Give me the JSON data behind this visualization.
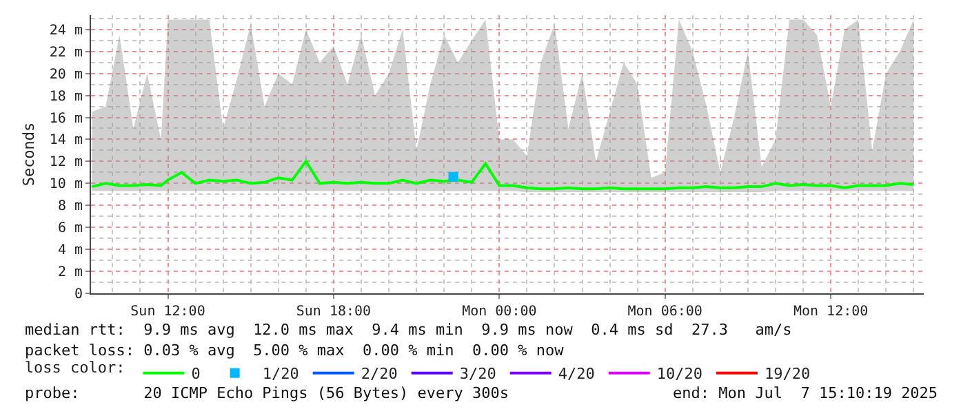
{
  "chart_data": {
    "type": "line",
    "ylabel": "Seconds",
    "legend_title": "loss color:",
    "legend": "bottom",
    "grid": true,
    "marker": "none",
    "xlim": [
      "2025-07-06T09:13",
      "2025-07-07T15:22"
    ],
    "xticks": [
      {
        "value": "2025-07-06T12:00",
        "label": "Sun 12:00"
      },
      {
        "value": "2025-07-06T18:00",
        "label": "Sun 18:00"
      },
      {
        "value": "2025-07-07T00:00",
        "label": "Mon 00:00"
      },
      {
        "value": "2025-07-07T06:00",
        "label": "Mon 06:00"
      },
      {
        "value": "2025-07-07T12:00",
        "label": "Mon 12:00"
      }
    ],
    "ylim": [
      0,
      25.3
    ],
    "yticks": [
      0,
      {
        "value": 2,
        "label": "2 m"
      },
      {
        "value": 4,
        "label": "4 m"
      },
      {
        "value": 6,
        "label": "6 m"
      },
      {
        "value": 8,
        "label": "8 m"
      },
      {
        "value": 10,
        "label": "10 m"
      },
      {
        "value": 12,
        "label": "12 m"
      },
      {
        "value": 14,
        "label": "14 m"
      },
      {
        "value": 16,
        "label": "16 m"
      },
      {
        "value": 18,
        "label": "18 m"
      },
      {
        "value": 20,
        "label": "20 m"
      },
      {
        "value": 22,
        "label": "22 m"
      },
      {
        "value": 24,
        "label": "24 m"
      }
    ],
    "x": [
      "2025-07-06T09:15",
      "2025-07-06T09:45",
      "2025-07-06T10:15",
      "2025-07-06T10:45",
      "2025-07-06T11:15",
      "2025-07-06T11:45",
      "2025-07-06T12:00",
      "2025-07-06T12:30",
      "2025-07-06T13:00",
      "2025-07-06T13:30",
      "2025-07-06T14:00",
      "2025-07-06T14:30",
      "2025-07-06T15:00",
      "2025-07-06T15:30",
      "2025-07-06T16:00",
      "2025-07-06T16:30",
      "2025-07-06T17:00",
      "2025-07-06T17:30",
      "2025-07-06T18:00",
      "2025-07-06T18:30",
      "2025-07-06T19:00",
      "2025-07-06T19:30",
      "2025-07-06T20:00",
      "2025-07-06T20:30",
      "2025-07-06T21:00",
      "2025-07-06T21:30",
      "2025-07-06T22:00",
      "2025-07-06T22:30",
      "2025-07-06T23:00",
      "2025-07-06T23:30",
      "2025-07-07T00:00",
      "2025-07-07T00:30",
      "2025-07-07T01:00",
      "2025-07-07T01:30",
      "2025-07-07T02:00",
      "2025-07-07T02:30",
      "2025-07-07T03:00",
      "2025-07-07T03:30",
      "2025-07-07T04:00",
      "2025-07-07T04:30",
      "2025-07-07T05:00",
      "2025-07-07T05:30",
      "2025-07-07T06:00",
      "2025-07-07T06:30",
      "2025-07-07T07:00",
      "2025-07-07T07:30",
      "2025-07-07T08:00",
      "2025-07-07T08:30",
      "2025-07-07T09:00",
      "2025-07-07T09:30",
      "2025-07-07T10:00",
      "2025-07-07T10:30",
      "2025-07-07T11:00",
      "2025-07-07T11:30",
      "2025-07-07T12:00",
      "2025-07-07T12:30",
      "2025-07-07T13:00",
      "2025-07-07T13:30",
      "2025-07-07T14:00",
      "2025-07-07T14:30",
      "2025-07-07T15:00"
    ],
    "series": [
      {
        "name": "0",
        "color": "#00ff00",
        "values": [
          9.7,
          10,
          9.8,
          9.8,
          9.9,
          9.8,
          10.3,
          11,
          10,
          10.3,
          10.2,
          10.3,
          10,
          10.1,
          10.5,
          10.3,
          12,
          10,
          10.1,
          10,
          10.1,
          10,
          10,
          10.3,
          10,
          10.3,
          10.2,
          10.3,
          10.1,
          11.8,
          9.8,
          9.8,
          9.6,
          9.5,
          9.5,
          9.6,
          9.5,
          9.5,
          9.6,
          9.5,
          9.5,
          9.5,
          9.5,
          9.6,
          9.6,
          9.7,
          9.6,
          9.6,
          9.7,
          9.7,
          10,
          9.8,
          9.9,
          9.8,
          9.8,
          9.6,
          9.8,
          9.8,
          9.8,
          10,
          9.9
        ],
        "lower": [
          9.3,
          9.3,
          9.3,
          9.3,
          9.3,
          9.3,
          9.3,
          9.3,
          9.3,
          9.3,
          9.3,
          9.3,
          9.3,
          9.3,
          9.3,
          9.3,
          9.3,
          9.3,
          9.3,
          9.3,
          9.3,
          9.3,
          9.3,
          9.3,
          9.3,
          9.3,
          9.3,
          9.3,
          9.3,
          9.3,
          9.3,
          9.3,
          9.2,
          9.2,
          9.2,
          9.2,
          9.2,
          9.2,
          9.2,
          9.2,
          9.2,
          9.2,
          9.2,
          9.2,
          9.2,
          9.2,
          9.2,
          9.2,
          9.2,
          9.2,
          9.3,
          9.3,
          9.3,
          9.3,
          9.3,
          9.3,
          9.3,
          9.3,
          9.3,
          9.3,
          9.3
        ],
        "upper": [
          16.5,
          17,
          23.5,
          15,
          20,
          14,
          24.9,
          24.9,
          24.9,
          24.9,
          15,
          19.5,
          24.5,
          17,
          20,
          19,
          24,
          21,
          22.5,
          19,
          23.5,
          18,
          20,
          24,
          13,
          19,
          23.5,
          21,
          23,
          24.9,
          14,
          14,
          12.5,
          21,
          24.5,
          15,
          20,
          12,
          16.5,
          21,
          19,
          10.5,
          11,
          24.9,
          22,
          17,
          11,
          16,
          22,
          11.5,
          14,
          24.9,
          24.9,
          23.5,
          17,
          24,
          24.9,
          13,
          20,
          22,
          24.9
        ]
      },
      {
        "name": "1/20",
        "color": "#00b8ff",
        "type": "scatter",
        "marker": "square",
        "x": [
          "2025-07-06T22:20"
        ],
        "values": [
          10.6
        ]
      },
      {
        "name": "2/20",
        "color": "#0059ff",
        "values": [
          null,
          null,
          null,
          null,
          null,
          null,
          null,
          null,
          null,
          null,
          null,
          null,
          null,
          null,
          null,
          null,
          null,
          null,
          null,
          null,
          null,
          null,
          null,
          null,
          null,
          null,
          null,
          null,
          null,
          null,
          null,
          null,
          null,
          null,
          null,
          null,
          null,
          null,
          null,
          null,
          null,
          null,
          null,
          null,
          null,
          null,
          null,
          null,
          null,
          null,
          null,
          null,
          null,
          null,
          null,
          null,
          null,
          null,
          null,
          null,
          null
        ]
      },
      {
        "name": "3/20",
        "color": "#5e00ff",
        "values": [
          null,
          null,
          null,
          null,
          null,
          null,
          null,
          null,
          null,
          null,
          null,
          null,
          null,
          null,
          null,
          null,
          null,
          null,
          null,
          null,
          null,
          null,
          null,
          null,
          null,
          null,
          null,
          null,
          null,
          null,
          null,
          null,
          null,
          null,
          null,
          null,
          null,
          null,
          null,
          null,
          null,
          null,
          null,
          null,
          null,
          null,
          null,
          null,
          null,
          null,
          null,
          null,
          null,
          null,
          null,
          null,
          null,
          null,
          null,
          null,
          null
        ]
      },
      {
        "name": "4/20",
        "color": "#7e00ff",
        "values": [
          null,
          null,
          null,
          null,
          null,
          null,
          null,
          null,
          null,
          null,
          null,
          null,
          null,
          null,
          null,
          null,
          null,
          null,
          null,
          null,
          null,
          null,
          null,
          null,
          null,
          null,
          null,
          null,
          null,
          null,
          null,
          null,
          null,
          null,
          null,
          null,
          null,
          null,
          null,
          null,
          null,
          null,
          null,
          null,
          null,
          null,
          null,
          null,
          null,
          null,
          null,
          null,
          null,
          null,
          null,
          null,
          null,
          null,
          null,
          null,
          null
        ]
      },
      {
        "name": "10/20",
        "color": "#dd00ff",
        "values": [
          null,
          null,
          null,
          null,
          null,
          null,
          null,
          null,
          null,
          null,
          null,
          null,
          null,
          null,
          null,
          null,
          null,
          null,
          null,
          null,
          null,
          null,
          null,
          null,
          null,
          null,
          null,
          null,
          null,
          null,
          null,
          null,
          null,
          null,
          null,
          null,
          null,
          null,
          null,
          null,
          null,
          null,
          null,
          null,
          null,
          null,
          null,
          null,
          null,
          null,
          null,
          null,
          null,
          null,
          null,
          null,
          null,
          null,
          null,
          null,
          null
        ]
      },
      {
        "name": "19/20",
        "color": "#ff0000",
        "values": [
          null,
          null,
          null,
          null,
          null,
          null,
          null,
          null,
          null,
          null,
          null,
          null,
          null,
          null,
          null,
          null,
          null,
          null,
          null,
          null,
          null,
          null,
          null,
          null,
          null,
          null,
          null,
          null,
          null,
          null,
          null,
          null,
          null,
          null,
          null,
          null,
          null,
          null,
          null,
          null,
          null,
          null,
          null,
          null,
          null,
          null,
          null,
          null,
          null,
          null,
          null,
          null,
          null,
          null,
          null,
          null,
          null,
          null,
          null,
          null,
          null
        ]
      }
    ],
    "annotations": [
      "median rtt:  9.9 ms avg  12.0 ms max  9.4 ms min  9.9 ms now  0.4 ms sd  27.3   am/s",
      "packet loss: 0.03 % avg  5.00 % max  0.00 % min  0.00 % now",
      "probe:       20 ICMP Echo Pings (56 Bytes) every 300s",
      "end: Mon Jul  7 15:10:19 2025"
    ]
  }
}
